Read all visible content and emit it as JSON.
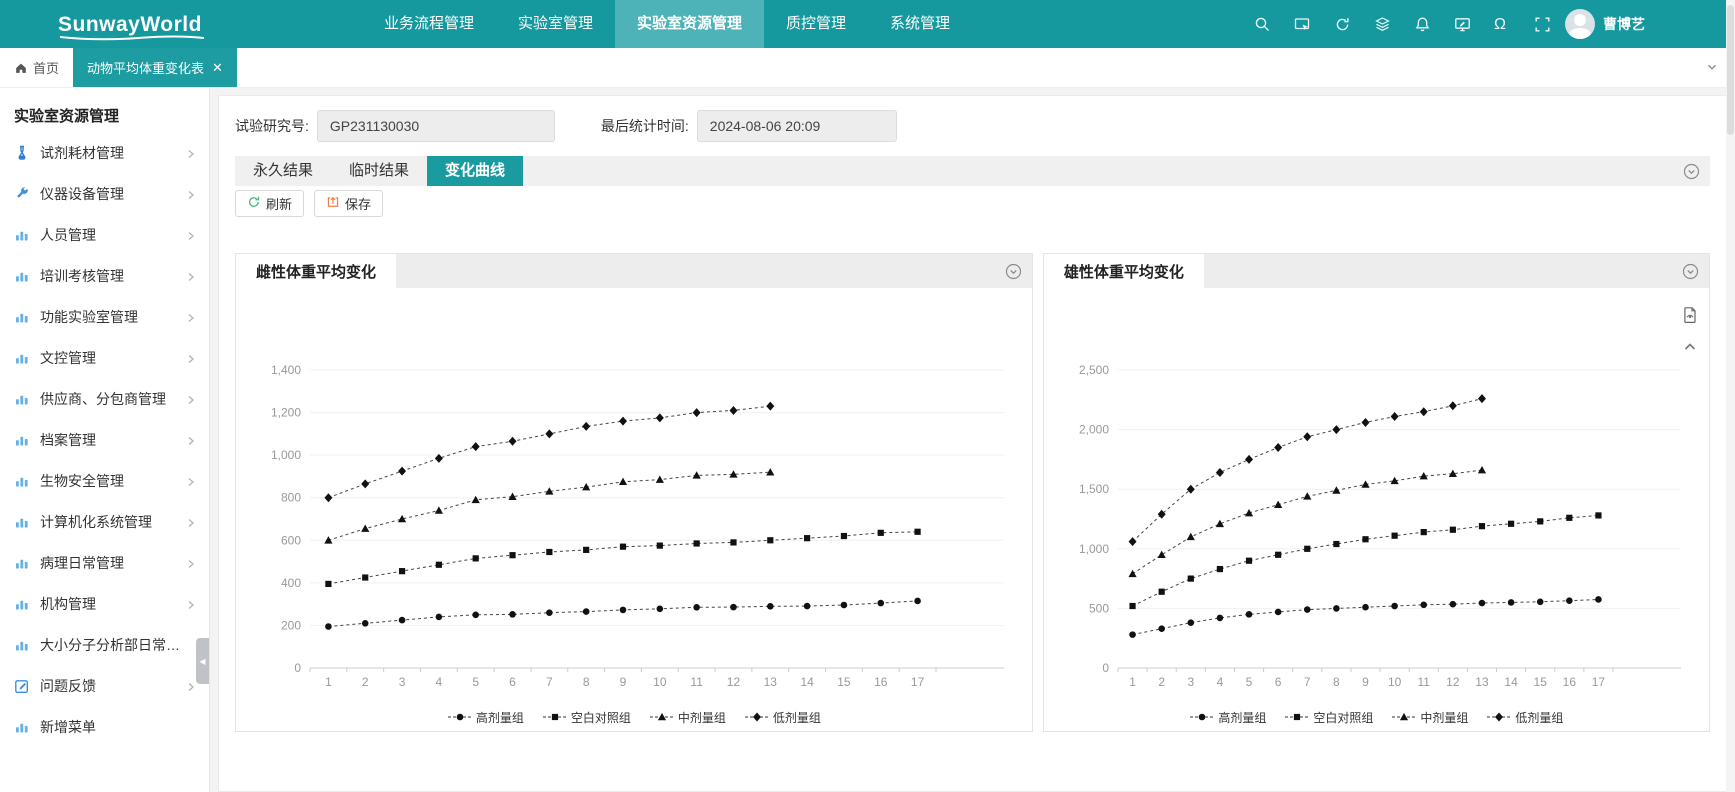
{
  "app": {
    "logo_text": "SunwayWorld",
    "username": "曹博艺"
  },
  "topnav": {
    "items": [
      {
        "label": "业务流程管理"
      },
      {
        "label": "实验室管理"
      },
      {
        "label": "实验室资源管理"
      },
      {
        "label": "质控管理"
      },
      {
        "label": "系统管理"
      }
    ],
    "active_index": 2,
    "icons": [
      "search-icon",
      "panel-cursor-icon",
      "refresh-icon",
      "layers-icon",
      "bell-icon",
      "monitor-edit-icon",
      "omega-icon",
      "fullscreen-icon"
    ]
  },
  "pagetabs": {
    "home_label": "首页",
    "active_tab": {
      "label": "动物平均体重变化表",
      "close": "✕"
    }
  },
  "sidebar": {
    "title": "实验室资源管理",
    "items": [
      {
        "label": "试剂耗材管理",
        "icon": "reagent-icon",
        "chevron": true
      },
      {
        "label": "仪器设备管理",
        "icon": "wrench-icon",
        "chevron": true
      },
      {
        "label": "人员管理",
        "icon": "bar-chart-icon",
        "chevron": true
      },
      {
        "label": "培训考核管理",
        "icon": "bar-chart-icon",
        "chevron": true
      },
      {
        "label": "功能实验室管理",
        "icon": "bar-chart-icon",
        "chevron": true
      },
      {
        "label": "文控管理",
        "icon": "bar-chart-icon",
        "chevron": true
      },
      {
        "label": "供应商、分包商管理",
        "icon": "bar-chart-icon",
        "chevron": true
      },
      {
        "label": "档案管理",
        "icon": "bar-chart-icon",
        "chevron": true
      },
      {
        "label": "生物安全管理",
        "icon": "bar-chart-icon",
        "chevron": true
      },
      {
        "label": "计算机化系统管理",
        "icon": "bar-chart-icon",
        "chevron": true
      },
      {
        "label": "病理日常管理",
        "icon": "bar-chart-icon",
        "chevron": true
      },
      {
        "label": "机构管理",
        "icon": "bar-chart-icon",
        "chevron": true
      },
      {
        "label": "大小分子分析部日常…",
        "icon": "bar-chart-icon",
        "chevron": false
      },
      {
        "label": "问题反馈",
        "icon": "feedback-icon",
        "chevron": true
      },
      {
        "label": "新增菜单",
        "icon": "bar-chart-icon",
        "chevron": false
      }
    ]
  },
  "toolbar": {
    "fields": [
      {
        "label": "试验研究号:",
        "value": "GP231130030"
      },
      {
        "label": "最后统计时间:",
        "value": "2024-08-06 20:09"
      }
    ],
    "result_tabs": [
      "永久结果",
      "临时结果",
      "变化曲线"
    ],
    "active_result_tab": 2,
    "buttons": [
      {
        "label": "刷新",
        "icon": "refresh-green-icon"
      },
      {
        "label": "保存",
        "icon": "save-orange-icon"
      }
    ]
  },
  "colors": {
    "header_teal": "#15989e",
    "header_active": "#4db3b8",
    "tab_active_teal": "#1a9ba0",
    "series_ink": "#111111",
    "grid": "#eef1f5",
    "axis": "#cccccc",
    "tick_label": "#999999"
  },
  "chart_data": [
    {
      "type": "line",
      "title": "雌性体重平均变化",
      "x": [
        "1",
        "2",
        "3",
        "4",
        "5",
        "6",
        "7",
        "8",
        "9",
        "10",
        "11",
        "12",
        "13",
        "14",
        "15",
        "16",
        "17"
      ],
      "ylim": [
        0,
        1400
      ],
      "ytick_step": 200,
      "grid": true,
      "legend_position": "bottom",
      "line_style": "dashed",
      "series": [
        {
          "name": "高剂量组",
          "marker": "circle",
          "values": [
            195,
            210,
            225,
            240,
            250,
            252,
            260,
            265,
            273,
            278,
            285,
            286,
            290,
            291,
            296,
            305,
            315
          ]
        },
        {
          "name": "空白对照组",
          "marker": "square",
          "values": [
            395,
            425,
            455,
            485,
            515,
            530,
            545,
            555,
            570,
            575,
            585,
            590,
            600,
            610,
            620,
            635,
            640
          ]
        },
        {
          "name": "中剂量组",
          "marker": "triangle",
          "values": [
            600,
            655,
            700,
            740,
            790,
            805,
            830,
            850,
            875,
            885,
            905,
            910,
            920,
            null,
            null,
            null,
            null
          ]
        },
        {
          "name": "低剂量组",
          "marker": "diamond",
          "values": [
            800,
            865,
            925,
            985,
            1040,
            1065,
            1100,
            1135,
            1160,
            1175,
            1200,
            1210,
            1230,
            null,
            null,
            null,
            null
          ]
        }
      ]
    },
    {
      "type": "line",
      "title": "雄性体重平均变化",
      "x": [
        "1",
        "2",
        "3",
        "4",
        "5",
        "6",
        "7",
        "8",
        "9",
        "10",
        "11",
        "12",
        "13",
        "14",
        "15",
        "16",
        "17"
      ],
      "ylim": [
        0,
        2500
      ],
      "ytick_step": 500,
      "grid": true,
      "legend_position": "bottom",
      "line_style": "dashed",
      "series": [
        {
          "name": "高剂量组",
          "marker": "circle",
          "values": [
            280,
            330,
            380,
            420,
            450,
            470,
            490,
            500,
            510,
            520,
            530,
            535,
            545,
            550,
            555,
            565,
            575
          ]
        },
        {
          "name": "空白对照组",
          "marker": "square",
          "values": [
            520,
            640,
            750,
            830,
            900,
            950,
            1000,
            1040,
            1080,
            1110,
            1140,
            1160,
            1190,
            1210,
            1230,
            1260,
            1280
          ]
        },
        {
          "name": "中剂量组",
          "marker": "triangle",
          "values": [
            790,
            950,
            1100,
            1210,
            1300,
            1370,
            1440,
            1490,
            1540,
            1570,
            1610,
            1630,
            1660,
            null,
            null,
            null,
            null
          ]
        },
        {
          "name": "低剂量组",
          "marker": "diamond",
          "values": [
            1060,
            1290,
            1500,
            1640,
            1750,
            1850,
            1940,
            2000,
            2060,
            2110,
            2150,
            2200,
            2260,
            null,
            null,
            null,
            null
          ]
        }
      ]
    }
  ]
}
